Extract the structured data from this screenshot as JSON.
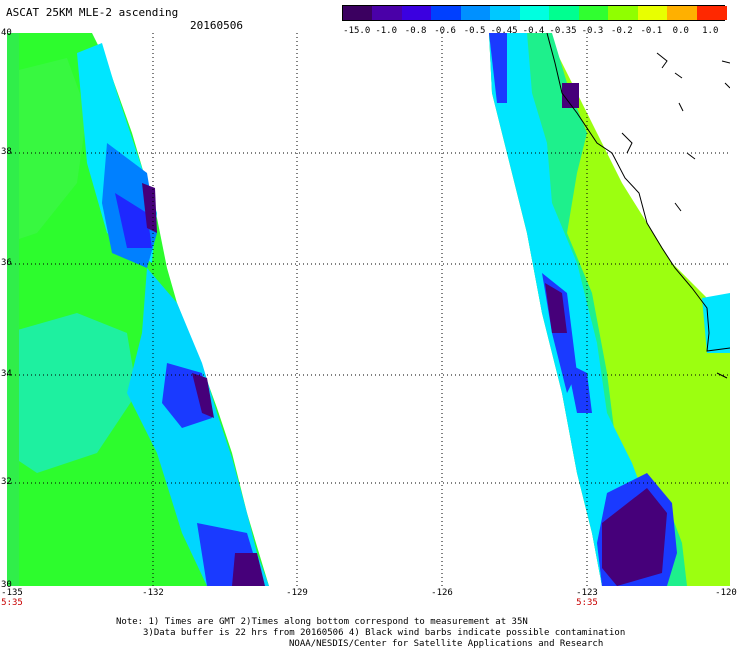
{
  "header": {
    "title": "ASCAT 25KM MLE-2 ascending",
    "date": "20160506"
  },
  "legend": {
    "labels": [
      "-15.0",
      "-1.0",
      "-0.8",
      "-0.6",
      "-0.5",
      "-0.45",
      "-0.4",
      "-0.35",
      "-0.3",
      "-0.2",
      "-0.1",
      "0.0",
      "1.0"
    ],
    "colors": [
      "#3b0060",
      "#4a00a8",
      "#3b00e0",
      "#0040ff",
      "#0090ff",
      "#00c8ff",
      "#00ffe0",
      "#00ff90",
      "#30ff30",
      "#90ff00",
      "#e8ff00",
      "#ffb000",
      "#ff2800"
    ]
  },
  "axes": {
    "lat_labels": [
      "40",
      "38",
      "36",
      "34",
      "32",
      "30"
    ],
    "lon_labels": [
      "-135",
      "-132",
      "-129",
      "-126",
      "-123",
      "-120"
    ]
  },
  "times": [
    "5:35",
    "5:35"
  ],
  "notes": {
    "line1": "Note: 1) Times are GMT 2)Times along bottom correspond to measurement at 35N",
    "line2": "3)Data buffer is 22 hrs from 20160506 4) Black wind barbs indicate possible contamination",
    "line3": "NOAA/NESDIS/Center for Satellite Applications and Research"
  }
}
